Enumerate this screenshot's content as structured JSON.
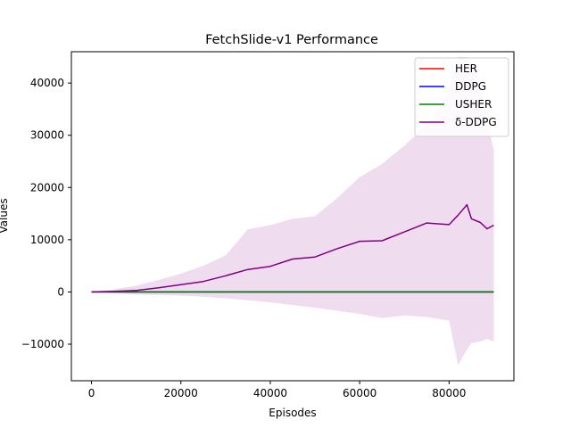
{
  "chart_data": {
    "type": "line",
    "title": "FetchSlide-v1 Performance",
    "xlabel": "Episodes",
    "ylabel": "Values",
    "xlim": [
      -4500,
      94500
    ],
    "ylim": [
      -17000,
      46000
    ],
    "x_ticks": [
      0,
      20000,
      40000,
      60000,
      80000
    ],
    "x_tick_labels": [
      "0",
      "20000",
      "40000",
      "60000",
      "80000"
    ],
    "y_ticks": [
      -10000,
      0,
      10000,
      20000,
      30000,
      40000
    ],
    "y_tick_labels": [
      "−10000",
      "0",
      "10000",
      "20000",
      "30000",
      "40000"
    ],
    "legend_position": "top-right",
    "grid": false,
    "series": [
      {
        "name": "HER",
        "color": "#ff0000",
        "x": [
          0,
          90000
        ],
        "y": [
          0,
          0
        ]
      },
      {
        "name": "DDPG",
        "color": "#0000ff",
        "x": [
          0,
          90000
        ],
        "y": [
          0,
          0
        ]
      },
      {
        "name": "USHER",
        "color": "#008000",
        "x": [
          0,
          90000
        ],
        "y": [
          0,
          0
        ]
      },
      {
        "name": "δ-DDPG",
        "color": "#800080",
        "band_color": "#efdcef",
        "x": [
          0,
          5000,
          10000,
          15000,
          20000,
          25000,
          30000,
          35000,
          40000,
          45000,
          50000,
          55000,
          60000,
          65000,
          70000,
          75000,
          80000,
          82000,
          84000,
          85000,
          87000,
          88500,
          90000
        ],
        "y": [
          0,
          100,
          300,
          800,
          1400,
          2000,
          3100,
          4300,
          4900,
          6300,
          6700,
          8300,
          9700,
          9800,
          11500,
          13200,
          12900,
          14700,
          16700,
          14000,
          13300,
          12100,
          12800
        ],
        "upper": [
          0,
          500,
          1200,
          2300,
          3500,
          5000,
          7000,
          12000,
          12800,
          14000,
          14500,
          18000,
          22000,
          24500,
          28000,
          32000,
          38500,
          45000,
          45000,
          44000,
          40000,
          33000,
          27000
        ],
        "lower": [
          0,
          -200,
          -500,
          -600,
          -700,
          -900,
          -1200,
          -1600,
          -2000,
          -2500,
          -3000,
          -3600,
          -4200,
          -5000,
          -4500,
          -4800,
          -5500,
          -14000,
          -11000,
          -9800,
          -9500,
          -9000,
          -9500
        ]
      }
    ]
  }
}
